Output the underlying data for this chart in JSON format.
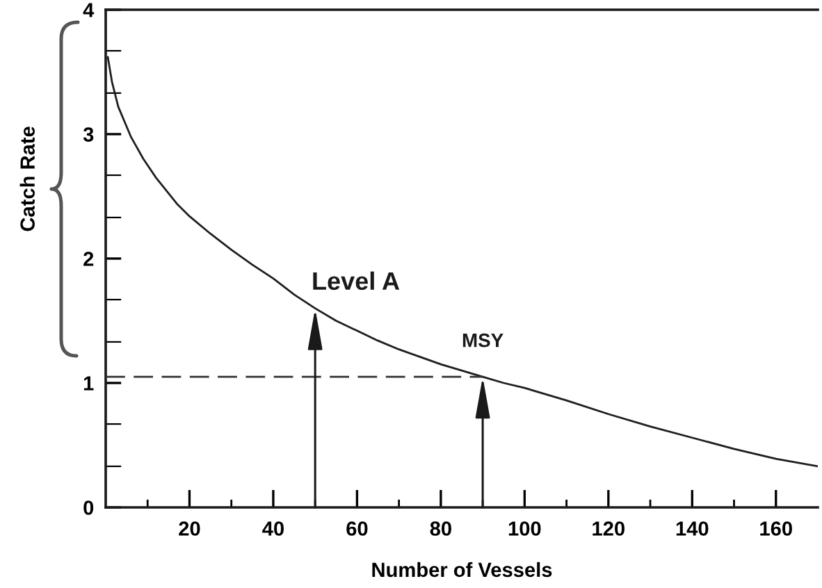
{
  "chart_data": {
    "type": "line",
    "xlabel": "Number of Vessels",
    "ylabel": "Catch Rate",
    "x": [
      0.5,
      1.5,
      3,
      6,
      9,
      12,
      17,
      20,
      25,
      30,
      35,
      40,
      45,
      50,
      55,
      60,
      65,
      70,
      75,
      80,
      85,
      90,
      95,
      100,
      110,
      120,
      130,
      140,
      150,
      160,
      170
    ],
    "series": [
      {
        "color": "#1e1e1e",
        "line_style": "solid",
        "values": [
          3.62,
          3.42,
          3.22,
          2.98,
          2.8,
          2.65,
          2.44,
          2.34,
          2.2,
          2.07,
          1.95,
          1.84,
          1.71,
          1.6,
          1.5,
          1.42,
          1.34,
          1.27,
          1.21,
          1.15,
          1.1,
          1.05,
          1.0,
          0.96,
          0.86,
          0.75,
          0.65,
          0.56,
          0.47,
          0.39,
          0.33
        ]
      },
      {
        "color": "#333333",
        "line_style": "dashed",
        "x": [
          0,
          90
        ],
        "values": [
          1.05,
          1.05
        ]
      }
    ],
    "xlim": [
      0,
      170
    ],
    "ylim": [
      0,
      4
    ],
    "xticks": [
      {
        "value": 10,
        "label": null
      },
      20,
      {
        "value": 30,
        "label": null
      },
      40,
      {
        "value": 50,
        "label": null
      },
      60,
      {
        "value": 70,
        "label": null
      },
      80,
      {
        "value": 90,
        "label": null
      },
      100,
      {
        "value": 110,
        "label": null
      },
      120,
      {
        "value": 130,
        "label": null
      },
      140,
      {
        "value": 150,
        "label": null
      },
      160
    ],
    "yticks": [
      0,
      {
        "value": 0.33,
        "label": null
      },
      {
        "value": 0.67,
        "label": null
      },
      1,
      {
        "value": 1.33,
        "label": null
      },
      {
        "value": 1.67,
        "label": null
      },
      2,
      {
        "value": 2.33,
        "label": null
      },
      {
        "value": 2.67,
        "label": null
      },
      3,
      {
        "value": 3.33,
        "label": null
      },
      {
        "value": 3.67,
        "label": null
      },
      4
    ],
    "annotations": [
      {
        "text": "Level A",
        "x": 50,
        "y": 1.6
      },
      {
        "text": "MSY",
        "x": 90,
        "y": 1.05
      }
    ]
  }
}
